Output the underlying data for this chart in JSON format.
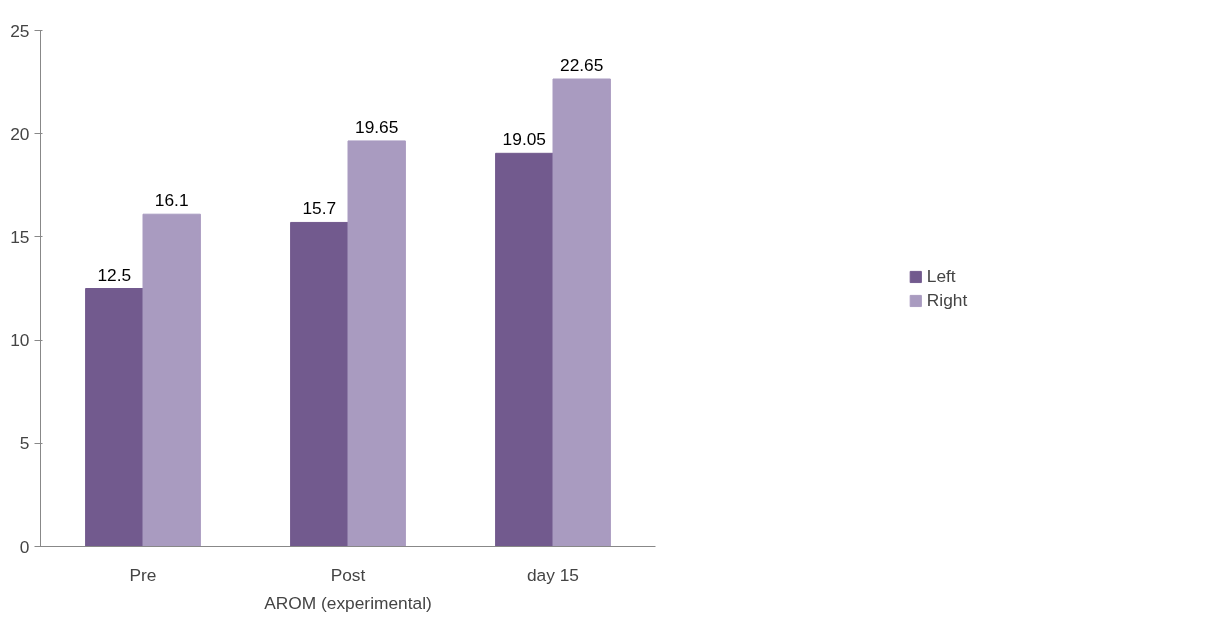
{
  "chart_data": {
    "type": "bar",
    "categories": [
      "Pre",
      "Post",
      "day 15"
    ],
    "xlabel": "AROM (experimental)",
    "series": [
      {
        "name": "Left",
        "color": "#725a8e",
        "values": [
          12.5,
          15.7,
          19.05
        ]
      },
      {
        "name": "Right",
        "color": "#a99bc0",
        "values": [
          16.1,
          19.65,
          22.65
        ]
      }
    ],
    "ylim": [
      0,
      25
    ],
    "yticks": [
      0,
      5,
      10,
      15,
      20,
      25
    ],
    "grid": false,
    "legend": "right",
    "data_labels": true
  }
}
